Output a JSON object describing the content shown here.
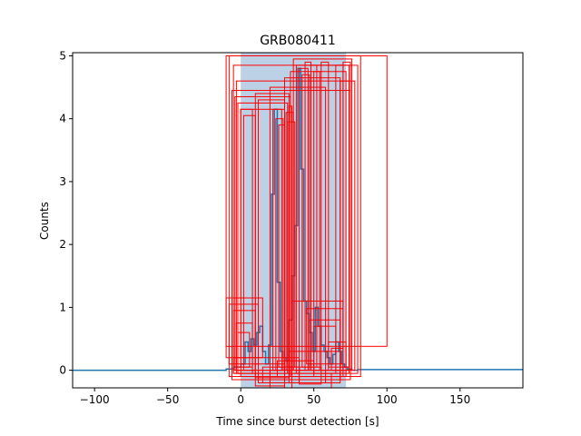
{
  "chart_data": {
    "type": "line",
    "title": "GRB080411",
    "xlabel": "Time since burst detection [s]",
    "ylabel": "Counts",
    "xlim": [
      -115,
      193
    ],
    "ylim": [
      -0.28,
      5.05
    ],
    "xticks": [
      -100,
      -50,
      0,
      50,
      100,
      150
    ],
    "yticks": [
      0,
      1,
      2,
      3,
      4,
      5
    ],
    "grid": false,
    "colors": {
      "lightcurve": "#1f77b4",
      "span": "#b0c9e0",
      "boxes": "#ff0000"
    },
    "shaded_span": {
      "x": [
        0,
        72
      ],
      "y": [
        -0.28,
        5.05
      ]
    },
    "series": [
      {
        "type": "step",
        "x": [
          -115,
          -10,
          -5,
          0,
          3,
          5,
          7,
          9,
          11,
          13,
          15,
          17,
          19,
          21,
          23,
          25,
          27,
          29,
          31,
          33,
          35,
          37,
          39,
          41,
          43,
          45,
          47,
          49,
          51,
          53,
          55,
          57,
          59,
          61,
          63,
          65,
          67,
          69,
          71,
          73,
          76,
          80,
          193
        ],
        "y": [
          0.0,
          0.02,
          0.05,
          0.1,
          0.45,
          0.3,
          0.5,
          0.4,
          0.6,
          0.7,
          0.3,
          0.1,
          0.4,
          2.8,
          4.15,
          1.4,
          0.3,
          0.2,
          0.15,
          0.8,
          1.5,
          2.3,
          4.8,
          3.2,
          1.1,
          0.9,
          0.6,
          0.3,
          1.0,
          0.7,
          0.4,
          0.3,
          0.2,
          0.1,
          0.25,
          0.45,
          0.3,
          0.1,
          0.05,
          0.02,
          0.0,
          0.01,
          0.0
        ]
      }
    ],
    "boxes": [
      {
        "x": [
          -10,
          100
        ],
        "y": [
          0.38,
          5.0
        ]
      },
      {
        "x": [
          -8,
          82
        ],
        "y": [
          -0.1,
          5.0
        ]
      },
      {
        "x": [
          -5,
          80
        ],
        "y": [
          -0.05,
          4.85
        ]
      },
      {
        "x": [
          -3,
          78
        ],
        "y": [
          0.0,
          4.6
        ]
      },
      {
        "x": [
          -6,
          75
        ],
        "y": [
          -0.15,
          4.45
        ]
      },
      {
        "x": [
          -4,
          34
        ],
        "y": [
          0.0,
          4.35
        ]
      },
      {
        "x": [
          -2,
          32
        ],
        "y": [
          -0.05,
          4.25
        ]
      },
      {
        "x": [
          0,
          30
        ],
        "y": [
          -0.1,
          4.15
        ]
      },
      {
        "x": [
          10,
          33
        ],
        "y": [
          -0.12,
          4.4
        ]
      },
      {
        "x": [
          12,
          30
        ],
        "y": [
          -0.2,
          4.3
        ]
      },
      {
        "x": [
          36,
          76
        ],
        "y": [
          0.0,
          4.95
        ]
      },
      {
        "x": [
          38,
          74
        ],
        "y": [
          -0.05,
          4.85
        ]
      },
      {
        "x": [
          34,
          72
        ],
        "y": [
          -0.1,
          4.75
        ]
      },
      {
        "x": [
          30,
          68
        ],
        "y": [
          -0.15,
          4.65
        ]
      },
      {
        "x": [
          20,
          58
        ],
        "y": [
          -0.2,
          4.5
        ]
      },
      {
        "x": [
          -10,
          15
        ],
        "y": [
          0.2,
          1.15
        ]
      },
      {
        "x": [
          -8,
          12
        ],
        "y": [
          0.1,
          1.05
        ]
      },
      {
        "x": [
          -5,
          10
        ],
        "y": [
          0.0,
          0.95
        ]
      },
      {
        "x": [
          -3,
          8
        ],
        "y": [
          -0.05,
          0.75
        ]
      },
      {
        "x": [
          -2,
          6
        ],
        "y": [
          0.05,
          0.6
        ]
      },
      {
        "x": [
          45,
          70
        ],
        "y": [
          0.1,
          0.98
        ]
      },
      {
        "x": [
          47,
          68
        ],
        "y": [
          0.0,
          0.8
        ]
      },
      {
        "x": [
          50,
          65
        ],
        "y": [
          -0.05,
          0.7
        ]
      },
      {
        "x": [
          60,
          72
        ],
        "y": [
          0.05,
          0.45
        ]
      },
      {
        "x": [
          62,
          70
        ],
        "y": [
          0.0,
          0.35
        ]
      },
      {
        "x": [
          35,
          70
        ],
        "y": [
          -0.1,
          1.1
        ]
      },
      {
        "x": [
          33,
          68
        ],
        "y": [
          -0.2,
          0.3
        ]
      },
      {
        "x": [
          35,
          62
        ],
        "y": [
          -0.3,
          -0.05
        ]
      },
      {
        "x": [
          40,
          55
        ],
        "y": [
          -0.22,
          0.05
        ]
      },
      {
        "x": [
          25,
          50
        ],
        "y": [
          -0.1,
          0.15
        ]
      },
      {
        "x": [
          10,
          30
        ],
        "y": [
          -0.25,
          0.1
        ]
      },
      {
        "x": [
          15,
          40
        ],
        "y": [
          -0.2,
          0.05
        ]
      },
      {
        "x": [
          20,
          30
        ],
        "y": [
          -0.3,
          0.0
        ]
      },
      {
        "x": [
          -5,
          40
        ],
        "y": [
          -0.05,
          0.2
        ]
      },
      {
        "x": [
          22,
          28
        ],
        "y": [
          0.0,
          4.15
        ]
      },
      {
        "x": [
          24,
          29
        ],
        "y": [
          0.0,
          4.0
        ]
      },
      {
        "x": [
          26,
          30
        ],
        "y": [
          0.05,
          3.9
        ]
      },
      {
        "x": [
          31,
          36
        ],
        "y": [
          0.0,
          4.1
        ]
      },
      {
        "x": [
          32,
          37
        ],
        "y": [
          0.05,
          3.95
        ]
      },
      {
        "x": [
          33,
          35
        ],
        "y": [
          0.0,
          4.2
        ]
      },
      {
        "x": [
          40,
          46
        ],
        "y": [
          0.0,
          4.8
        ]
      },
      {
        "x": [
          42,
          47
        ],
        "y": [
          0.05,
          4.7
        ]
      },
      {
        "x": [
          44,
          48
        ],
        "y": [
          0.0,
          4.9
        ]
      },
      {
        "x": [
          48,
          52
        ],
        "y": [
          0.05,
          4.85
        ]
      },
      {
        "x": [
          50,
          54
        ],
        "y": [
          0.0,
          4.75
        ]
      },
      {
        "x": [
          55,
          60
        ],
        "y": [
          0.0,
          4.9
        ]
      },
      {
        "x": [
          65,
          70
        ],
        "y": [
          0.0,
          4.85
        ]
      },
      {
        "x": [
          68,
          74
        ],
        "y": [
          0.05,
          4.6
        ]
      },
      {
        "x": [
          70,
          75
        ],
        "y": [
          0.0,
          4.9
        ]
      },
      {
        "x": [
          0,
          8
        ],
        "y": [
          0.05,
          4.15
        ]
      },
      {
        "x": [
          2,
          10
        ],
        "y": [
          0.0,
          4.05
        ]
      }
    ]
  }
}
